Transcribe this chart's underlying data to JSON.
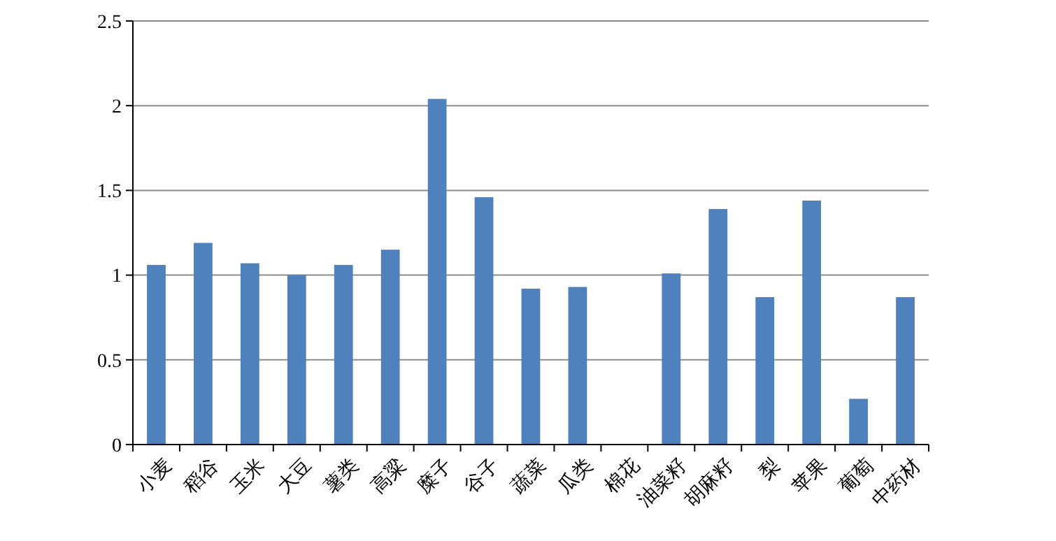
{
  "chart_data": {
    "type": "bar",
    "categories": [
      "小麦",
      "稻谷",
      "玉米",
      "大豆",
      "薯类",
      "高粱",
      "糜子",
      "谷子",
      "蔬菜",
      "瓜类",
      "棉花",
      "油菜籽",
      "胡麻籽",
      "梨",
      "苹果",
      "葡萄",
      "中药材"
    ],
    "values": [
      1.06,
      1.19,
      1.07,
      1.0,
      1.06,
      1.15,
      2.04,
      1.46,
      0.92,
      0.93,
      null,
      1.01,
      1.39,
      0.87,
      1.44,
      0.27,
      0.87
    ],
    "color": "#4f81bd",
    "ylim": [
      0,
      2.5
    ],
    "yticks": [
      0,
      {
        "value": 0.5,
        "label": "0.5"
      },
      1,
      {
        "value": 1.5,
        "label": "1.5"
      },
      2,
      {
        "value": 2.5,
        "label": "2.5"
      }
    ],
    "grid": "y"
  }
}
